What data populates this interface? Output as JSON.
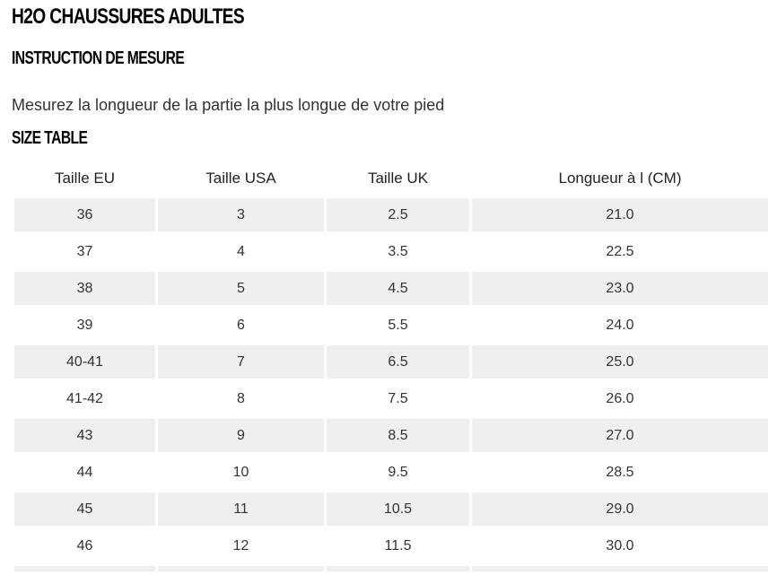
{
  "page": {
    "title": "H2O CHAUSSURES ADULTES",
    "subtitle": "INSTRUCTION DE MESURE",
    "instruction": "Mesurez la longueur de la partie la plus longue de votre pied",
    "table_heading": "SIZE TABLE"
  },
  "size_table": {
    "headers": [
      "Taille EU",
      "Taille USA",
      "Taille UK",
      "Longueur à l (CM)"
    ],
    "rows": [
      [
        "36",
        "3",
        "2.5",
        "21.0"
      ],
      [
        "37",
        "4",
        "3.5",
        "22.5"
      ],
      [
        "38",
        "5",
        "4.5",
        "23.0"
      ],
      [
        "39",
        "6",
        "5.5",
        "24.0"
      ],
      [
        "40-41",
        "7",
        "6.5",
        "25.0"
      ],
      [
        "41-42",
        "8",
        "7.5",
        "26.0"
      ],
      [
        "43",
        "9",
        "8.5",
        "27.0"
      ],
      [
        "44",
        "10",
        "9.5",
        "28.5"
      ],
      [
        "45",
        "11",
        "10.5",
        "29.0"
      ],
      [
        "46",
        "12",
        "11.5",
        "30.0"
      ]
    ]
  },
  "colors": {
    "row_shade": "#efefef",
    "heading": "#000000",
    "text": "#333333"
  }
}
